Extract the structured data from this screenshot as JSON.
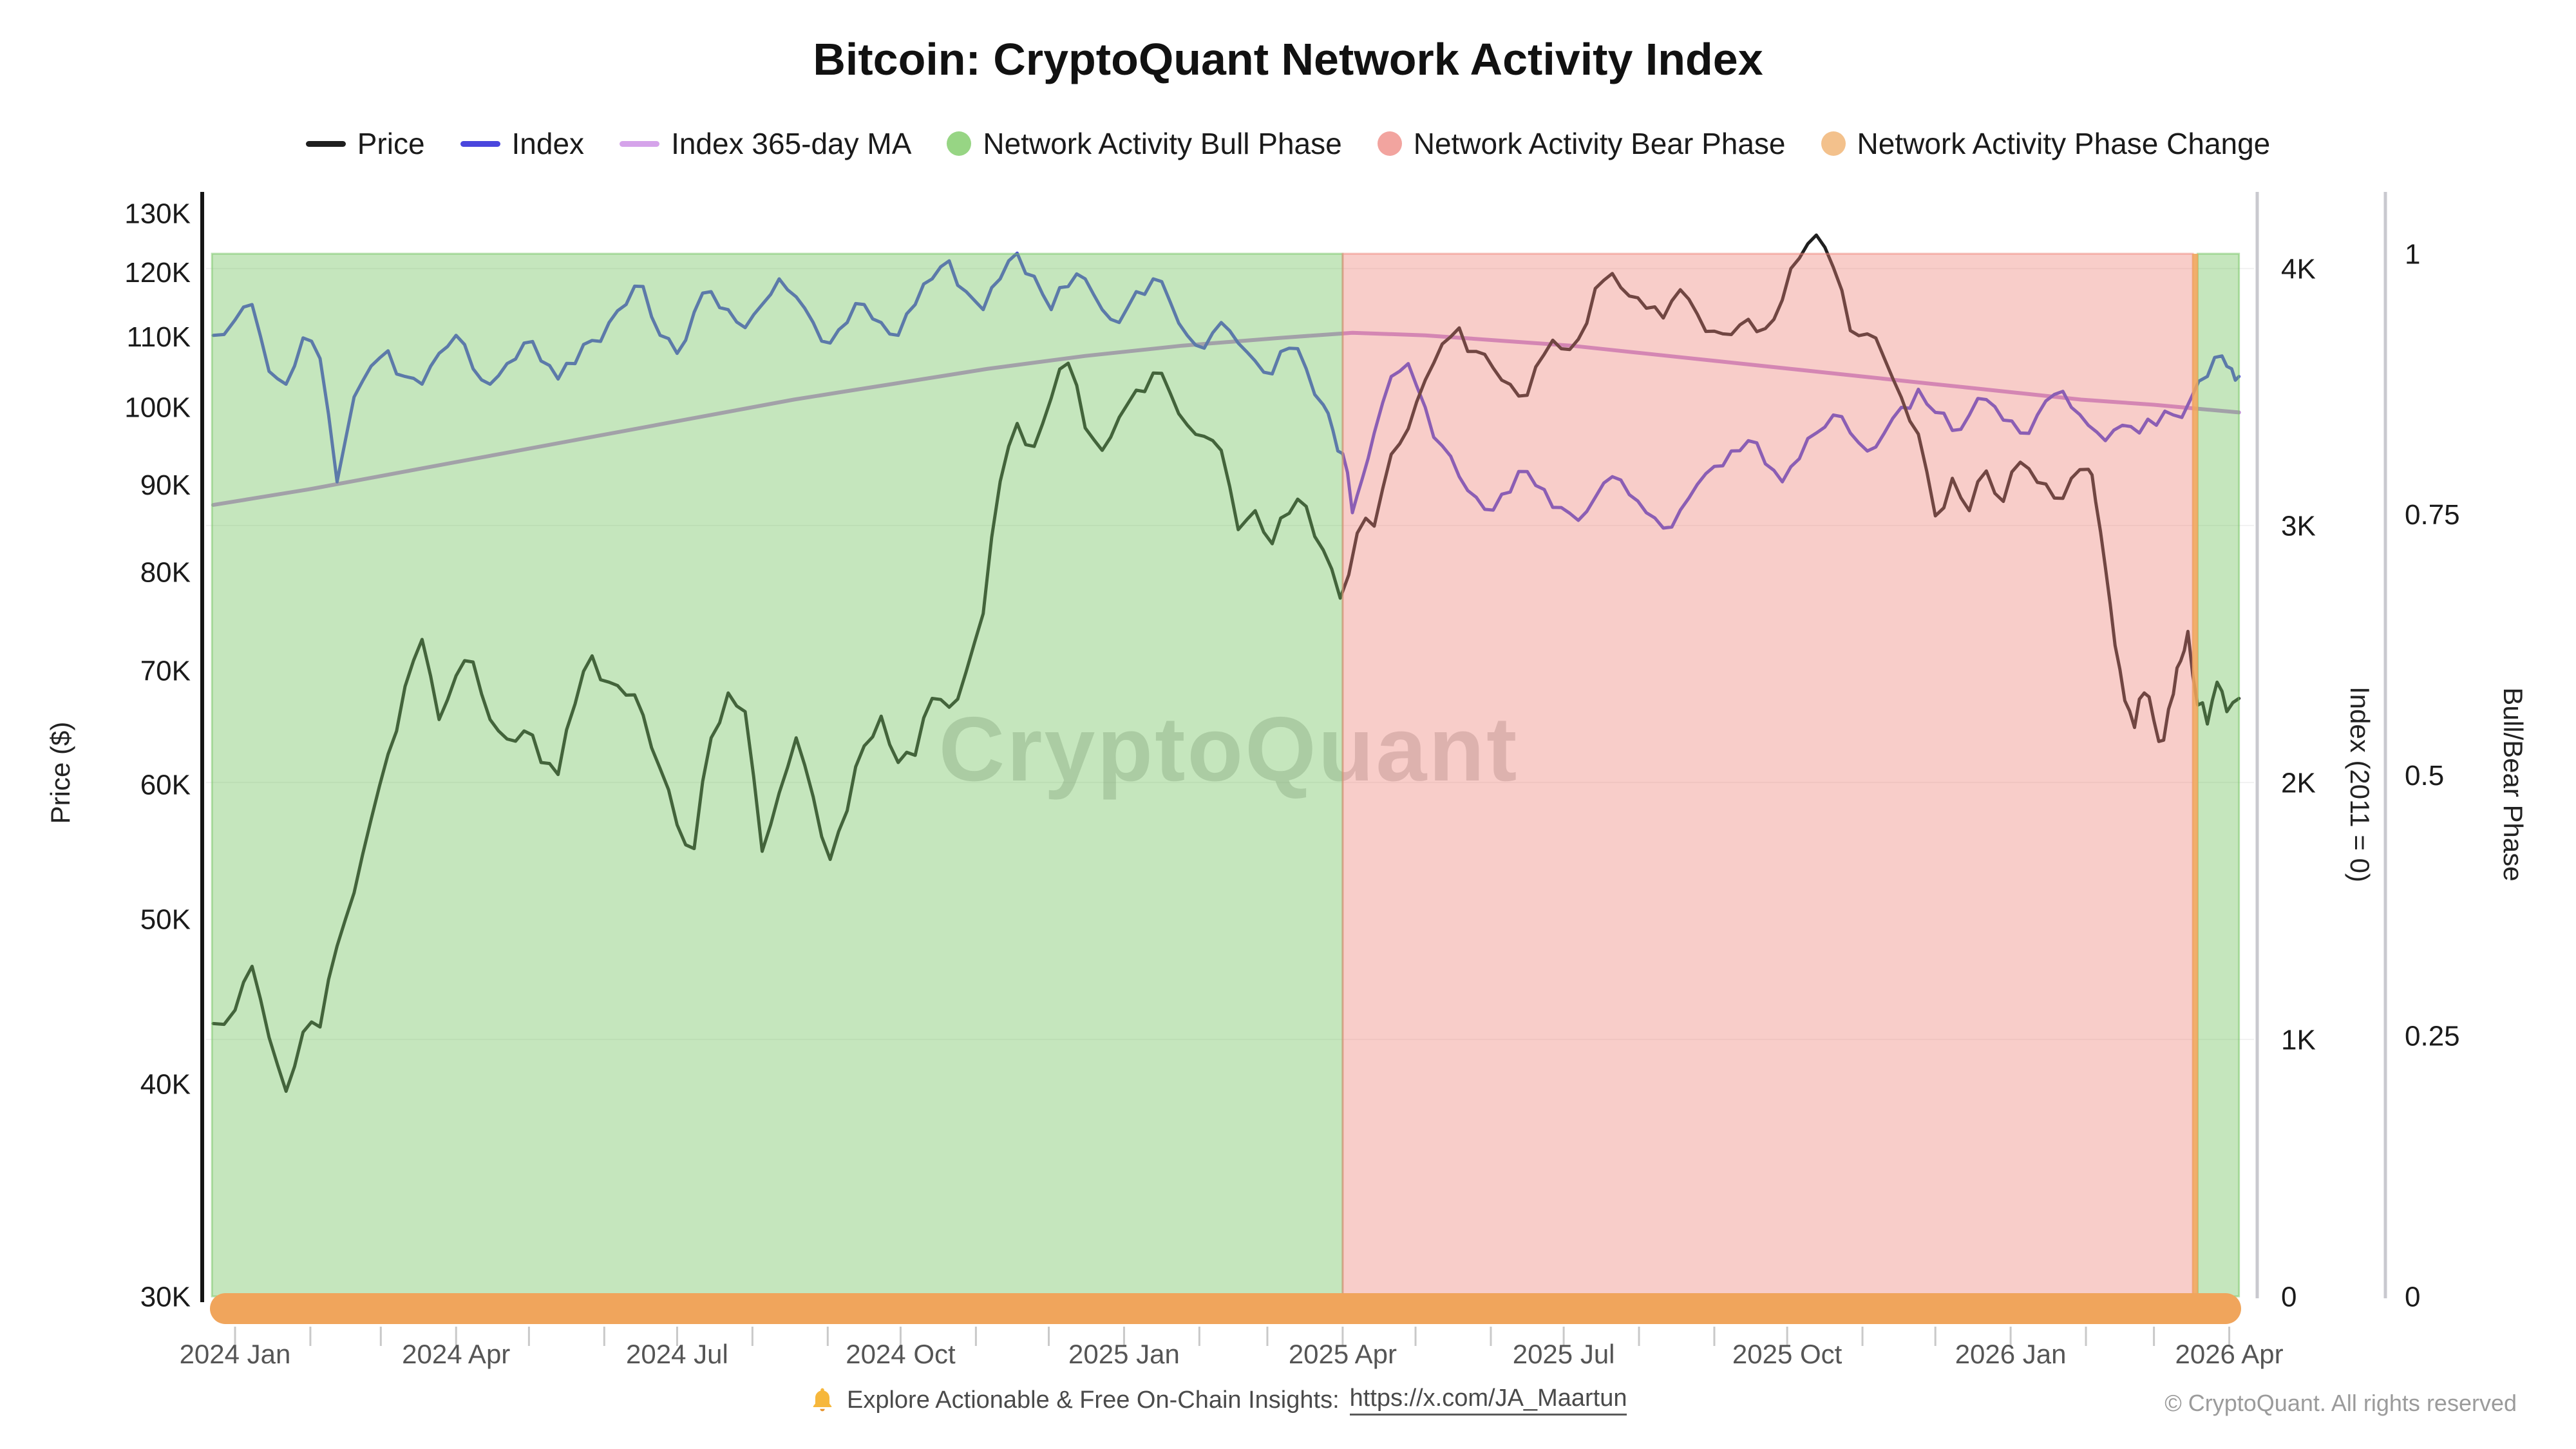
{
  "title": "Bitcoin: CryptoQuant Network Activity Index",
  "watermark": "CryptoQuant",
  "legend": [
    {
      "label": "Price",
      "swatch": "line",
      "color": "#1f1f1f"
    },
    {
      "label": "Index",
      "swatch": "line",
      "color": "#4a46dd"
    },
    {
      "label": "Index 365-day MA",
      "swatch": "line",
      "color": "#d5a3ea"
    },
    {
      "label": "Network Activity Bull Phase",
      "swatch": "circle",
      "color": "#97d584"
    },
    {
      "label": "Network Activity Bear Phase",
      "swatch": "circle",
      "color": "#f2a49f"
    },
    {
      "label": "Network Activity Phase Change",
      "swatch": "circle",
      "color": "#f3c18c"
    }
  ],
  "footer": {
    "icon": "bell-icon",
    "note_text": "Explore Actionable & Free On-Chain Insights: ",
    "link_text": "https://x.com/JA_Maartun",
    "copyright": "© CryptoQuant. All rights reserved"
  },
  "chart_data": {
    "type": "line",
    "title": "Bitcoin: CryptoQuant Network Activity Index",
    "x_axis": {
      "unit": "days since 2024-01-01",
      "ticks": [
        {
          "day": 0,
          "label": "2024 Jan"
        },
        {
          "day": 91,
          "label": "2024 Apr"
        },
        {
          "day": 182,
          "label": "2024 Jul"
        },
        {
          "day": 274,
          "label": "2024 Oct"
        },
        {
          "day": 366,
          "label": "2025 Jan"
        },
        {
          "day": 456,
          "label": "2025 Apr"
        },
        {
          "day": 547,
          "label": "2025 Jul"
        },
        {
          "day": 639,
          "label": "2025 Oct"
        },
        {
          "day": 731,
          "label": "2026 Jan"
        },
        {
          "day": 821,
          "label": "2026 Apr"
        }
      ],
      "minor_tick_days": [
        0,
        31,
        60,
        91,
        121,
        152,
        182,
        213,
        244,
        274,
        305,
        335,
        366,
        397,
        425,
        456,
        486,
        517,
        547,
        578,
        609,
        639,
        670,
        700,
        731,
        762,
        790,
        821
      ]
    },
    "price_axis": {
      "label": "Price ($)",
      "scale": "log",
      "range_usd_k": [
        30,
        130
      ],
      "ticks": [
        {
          "v": 130,
          "label": "130K"
        },
        {
          "v": 120,
          "label": "120K"
        },
        {
          "v": 110,
          "label": "110K"
        },
        {
          "v": 100,
          "label": "100K"
        },
        {
          "v": 90,
          "label": "90K"
        },
        {
          "v": 80,
          "label": "80K"
        },
        {
          "v": 70,
          "label": "70K"
        },
        {
          "v": 60,
          "label": "60K"
        },
        {
          "v": 50,
          "label": "50K"
        },
        {
          "v": 40,
          "label": "40K"
        },
        {
          "v": 30,
          "label": "30K"
        }
      ]
    },
    "index_axis": {
      "label": "Index (2011 = 0)",
      "scale": "linear",
      "range_k": [
        0,
        4.05
      ],
      "ticks": [
        {
          "v": 4,
          "label": "4K"
        },
        {
          "v": 3,
          "label": "3K"
        },
        {
          "v": 2,
          "label": "2K"
        },
        {
          "v": 1,
          "label": "1K"
        },
        {
          "v": 0,
          "label": "0"
        }
      ]
    },
    "phase_axis": {
      "label": "Bull/Bear Phase",
      "scale": "linear",
      "range": [
        0,
        1
      ],
      "ticks": [
        {
          "v": 1,
          "label": "1"
        },
        {
          "v": 0.75,
          "label": "0.75"
        },
        {
          "v": 0.5,
          "label": "0.5"
        },
        {
          "v": 0.25,
          "label": "0.25"
        },
        {
          "v": 0,
          "label": "0"
        }
      ]
    },
    "colors": {
      "price": "#1f1f1f",
      "index": "#4a46dd",
      "index_ma": "#c389db",
      "bull_band": "#74c462",
      "bear_band": "#ee8277",
      "phase_change": "#f0a55c"
    },
    "phases": [
      {
        "phase": "bull",
        "start_day": -9.5,
        "end_day": 456
      },
      {
        "phase": "bear",
        "start_day": 456,
        "end_day": 806
      },
      {
        "phase": "bull",
        "start_day": 808,
        "end_day": 825
      }
    ],
    "phase_change_day": 807,
    "series": {
      "price_usd_k": [
        [
          -9,
          43.4
        ],
        [
          0,
          44.2
        ],
        [
          7,
          46.9
        ],
        [
          14,
          42.6
        ],
        [
          21,
          39.6
        ],
        [
          28,
          42.9
        ],
        [
          35,
          43.2
        ],
        [
          42,
          48.2
        ],
        [
          49,
          51.8
        ],
        [
          56,
          57.2
        ],
        [
          63,
          62.5
        ],
        [
          70,
          68.5
        ],
        [
          77,
          73
        ],
        [
          84,
          65.5
        ],
        [
          91,
          69.5
        ],
        [
          98,
          70.8
        ],
        [
          105,
          65.5
        ],
        [
          112,
          63.8
        ],
        [
          119,
          64.5
        ],
        [
          126,
          61.8
        ],
        [
          133,
          60.8
        ],
        [
          140,
          66.9
        ],
        [
          147,
          71.4
        ],
        [
          154,
          68.9
        ],
        [
          161,
          67.7
        ],
        [
          168,
          65.9
        ],
        [
          175,
          61.3
        ],
        [
          182,
          56.8
        ],
        [
          189,
          55
        ],
        [
          196,
          63.9
        ],
        [
          203,
          67.9
        ],
        [
          210,
          66.2
        ],
        [
          217,
          54.8
        ],
        [
          224,
          59.3
        ],
        [
          231,
          63.9
        ],
        [
          238,
          59
        ],
        [
          245,
          54.2
        ],
        [
          252,
          57.9
        ],
        [
          259,
          63.2
        ],
        [
          266,
          65.8
        ],
        [
          273,
          61.8
        ],
        [
          280,
          62.4
        ],
        [
          287,
          67.4
        ],
        [
          294,
          66.6
        ],
        [
          301,
          69.9
        ],
        [
          308,
          75.6
        ],
        [
          315,
          90.4
        ],
        [
          322,
          97.8
        ],
        [
          329,
          94.8
        ],
        [
          336,
          101.2
        ],
        [
          343,
          106.1
        ],
        [
          350,
          97.2
        ],
        [
          357,
          94.3
        ],
        [
          364,
          98.6
        ],
        [
          371,
          102.3
        ],
        [
          378,
          104.7
        ],
        [
          385,
          101.9
        ],
        [
          392,
          97.6
        ],
        [
          399,
          96.1
        ],
        [
          406,
          94.3
        ],
        [
          413,
          84.7
        ],
        [
          420,
          86.9
        ],
        [
          427,
          83.1
        ],
        [
          434,
          86.6
        ],
        [
          441,
          87.4
        ],
        [
          448,
          82.4
        ],
        [
          455,
          77.2
        ],
        [
          462,
          84.3
        ],
        [
          469,
          85.1
        ],
        [
          476,
          93.8
        ],
        [
          483,
          97.1
        ],
        [
          490,
          103.7
        ],
        [
          497,
          108.9
        ],
        [
          504,
          111.3
        ],
        [
          511,
          107.8
        ],
        [
          518,
          105.4
        ],
        [
          525,
          103.1
        ],
        [
          532,
          101.6
        ],
        [
          539,
          107.4
        ],
        [
          546,
          108.2
        ],
        [
          553,
          109.6
        ],
        [
          560,
          117.4
        ],
        [
          567,
          119.8
        ],
        [
          574,
          116.2
        ],
        [
          581,
          114.3
        ],
        [
          588,
          112.8
        ],
        [
          595,
          117.2
        ],
        [
          602,
          113.4
        ],
        [
          609,
          110.8
        ],
        [
          616,
          110.3
        ],
        [
          623,
          112.6
        ],
        [
          630,
          111.2
        ],
        [
          637,
          115.6
        ],
        [
          644,
          122.3
        ],
        [
          651,
          126.2
        ],
        [
          658,
          120.8
        ],
        [
          665,
          110.9
        ],
        [
          672,
          110.4
        ],
        [
          679,
          106.8
        ],
        [
          686,
          101.3
        ],
        [
          693,
          96.4
        ],
        [
          700,
          86.3
        ],
        [
          707,
          90.8
        ],
        [
          714,
          86.9
        ],
        [
          721,
          91.7
        ],
        [
          728,
          88
        ],
        [
          735,
          92.8
        ],
        [
          742,
          90.3
        ],
        [
          749,
          88.4
        ],
        [
          756,
          90.8
        ],
        [
          763,
          91.9
        ],
        [
          766,
          88
        ],
        [
          770,
          80.5
        ],
        [
          774,
          72.4
        ],
        [
          778,
          67.2
        ],
        [
          782,
          64.8
        ],
        [
          786,
          67.9
        ],
        [
          790,
          65.4
        ],
        [
          794,
          63.7
        ],
        [
          798,
          67.8
        ],
        [
          801,
          70.9
        ],
        [
          804,
          73.8
        ],
        [
          808,
          66.8
        ],
        [
          812,
          65.1
        ],
        [
          816,
          68.9
        ],
        [
          820,
          66.2
        ],
        [
          825,
          67.4
        ]
      ],
      "index_k": [
        [
          -9,
          3.74
        ],
        [
          0,
          3.8
        ],
        [
          7,
          3.86
        ],
        [
          14,
          3.6
        ],
        [
          21,
          3.55
        ],
        [
          28,
          3.73
        ],
        [
          35,
          3.65
        ],
        [
          42,
          3.17
        ],
        [
          49,
          3.5
        ],
        [
          56,
          3.62
        ],
        [
          63,
          3.68
        ],
        [
          70,
          3.58
        ],
        [
          77,
          3.55
        ],
        [
          84,
          3.67
        ],
        [
          91,
          3.74
        ],
        [
          98,
          3.61
        ],
        [
          105,
          3.55
        ],
        [
          112,
          3.63
        ],
        [
          119,
          3.71
        ],
        [
          126,
          3.64
        ],
        [
          133,
          3.57
        ],
        [
          140,
          3.63
        ],
        [
          147,
          3.72
        ],
        [
          154,
          3.79
        ],
        [
          161,
          3.86
        ],
        [
          168,
          3.93
        ],
        [
          175,
          3.74
        ],
        [
          182,
          3.67
        ],
        [
          189,
          3.83
        ],
        [
          196,
          3.91
        ],
        [
          203,
          3.84
        ],
        [
          210,
          3.77
        ],
        [
          217,
          3.86
        ],
        [
          224,
          3.96
        ],
        [
          231,
          3.89
        ],
        [
          238,
          3.79
        ],
        [
          245,
          3.71
        ],
        [
          252,
          3.79
        ],
        [
          259,
          3.86
        ],
        [
          266,
          3.79
        ],
        [
          273,
          3.74
        ],
        [
          280,
          3.86
        ],
        [
          287,
          3.96
        ],
        [
          294,
          4.03
        ],
        [
          301,
          3.91
        ],
        [
          308,
          3.84
        ],
        [
          315,
          3.96
        ],
        [
          322,
          4.06
        ],
        [
          329,
          3.97
        ],
        [
          336,
          3.84
        ],
        [
          343,
          3.93
        ],
        [
          350,
          3.96
        ],
        [
          357,
          3.84
        ],
        [
          364,
          3.79
        ],
        [
          371,
          3.91
        ],
        [
          378,
          3.96
        ],
        [
          385,
          3.87
        ],
        [
          392,
          3.74
        ],
        [
          399,
          3.69
        ],
        [
          406,
          3.79
        ],
        [
          413,
          3.71
        ],
        [
          420,
          3.64
        ],
        [
          427,
          3.59
        ],
        [
          434,
          3.69
        ],
        [
          441,
          3.61
        ],
        [
          448,
          3.47
        ],
        [
          452,
          3.37
        ],
        [
          456,
          3.28
        ],
        [
          460,
          3.05
        ],
        [
          464,
          3.18
        ],
        [
          469,
          3.36
        ],
        [
          476,
          3.58
        ],
        [
          483,
          3.63
        ],
        [
          490,
          3.46
        ],
        [
          497,
          3.31
        ],
        [
          504,
          3.19
        ],
        [
          511,
          3.11
        ],
        [
          518,
          3.06
        ],
        [
          525,
          3.13
        ],
        [
          532,
          3.21
        ],
        [
          539,
          3.14
        ],
        [
          546,
          3.07
        ],
        [
          553,
          3.02
        ],
        [
          560,
          3.11
        ],
        [
          567,
          3.19
        ],
        [
          574,
          3.12
        ],
        [
          581,
          3.05
        ],
        [
          588,
          2.99
        ],
        [
          595,
          3.06
        ],
        [
          602,
          3.16
        ],
        [
          609,
          3.23
        ],
        [
          616,
          3.29
        ],
        [
          623,
          3.33
        ],
        [
          630,
          3.24
        ],
        [
          637,
          3.17
        ],
        [
          644,
          3.26
        ],
        [
          651,
          3.36
        ],
        [
          658,
          3.43
        ],
        [
          665,
          3.36
        ],
        [
          672,
          3.29
        ],
        [
          679,
          3.36
        ],
        [
          686,
          3.46
        ],
        [
          693,
          3.53
        ],
        [
          700,
          3.44
        ],
        [
          707,
          3.37
        ],
        [
          714,
          3.43
        ],
        [
          721,
          3.49
        ],
        [
          728,
          3.41
        ],
        [
          735,
          3.36
        ],
        [
          742,
          3.43
        ],
        [
          749,
          3.51
        ],
        [
          756,
          3.46
        ],
        [
          763,
          3.39
        ],
        [
          770,
          3.33
        ],
        [
          777,
          3.39
        ],
        [
          784,
          3.36
        ],
        [
          791,
          3.39
        ],
        [
          798,
          3.43
        ],
        [
          805,
          3.49
        ],
        [
          812,
          3.58
        ],
        [
          818,
          3.66
        ],
        [
          822,
          3.61
        ],
        [
          825,
          3.58
        ]
      ],
      "index_365d_ma_k": [
        [
          -9,
          3.08
        ],
        [
          30,
          3.14
        ],
        [
          70,
          3.21
        ],
        [
          110,
          3.28
        ],
        [
          150,
          3.35
        ],
        [
          190,
          3.42
        ],
        [
          230,
          3.49
        ],
        [
          270,
          3.55
        ],
        [
          310,
          3.61
        ],
        [
          350,
          3.66
        ],
        [
          390,
          3.7
        ],
        [
          430,
          3.73
        ],
        [
          460,
          3.75
        ],
        [
          490,
          3.74
        ],
        [
          520,
          3.72
        ],
        [
          550,
          3.7
        ],
        [
          580,
          3.67
        ],
        [
          610,
          3.64
        ],
        [
          640,
          3.61
        ],
        [
          670,
          3.58
        ],
        [
          700,
          3.55
        ],
        [
          730,
          3.52
        ],
        [
          760,
          3.49
        ],
        [
          790,
          3.47
        ],
        [
          825,
          3.44
        ]
      ]
    }
  }
}
